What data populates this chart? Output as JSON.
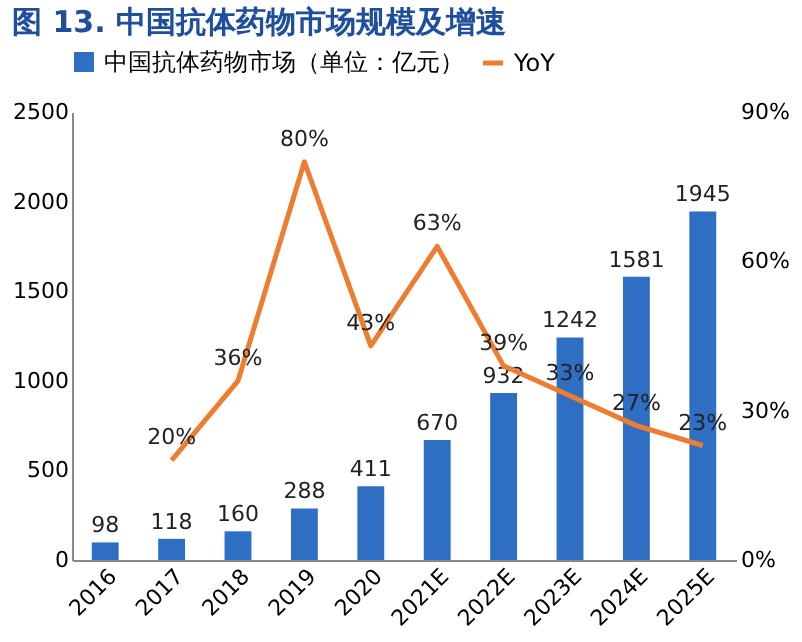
{
  "chart_data": {
    "type": "bar",
    "title": "图 13. 中国抗体药物市场规模及增速",
    "categories": [
      "2016",
      "2017",
      "2018",
      "2019",
      "2020",
      "2021E",
      "2022E",
      "2023E",
      "2024E",
      "2025E"
    ],
    "series": [
      {
        "name": "中国抗体药物市场（单位：亿元）",
        "color": "#2e6fc4",
        "values": [
          98,
          118,
          160,
          288,
          411,
          670,
          932,
          1242,
          1581,
          1945
        ],
        "value_labels": [
          "98",
          "118",
          "160",
          "288",
          "411",
          "670",
          "932",
          "1242",
          "1581",
          "1945"
        ]
      },
      {
        "name": "YoY",
        "type": "line",
        "axis": "y2",
        "color": "#ed7d31",
        "values": [
          null,
          20,
          36,
          80,
          43,
          63,
          39,
          33,
          27,
          23
        ],
        "value_labels": [
          null,
          "20%",
          "36%",
          "80%",
          "43%",
          "63%",
          "39%",
          "33%",
          "27%",
          "23%"
        ]
      }
    ],
    "ylim": [
      0,
      2500
    ],
    "yticks": [
      0,
      500,
      1000,
      1500,
      2000,
      2500
    ],
    "y2lim": [
      0,
      90
    ],
    "y2ticks": [
      {
        "value": 0,
        "label": "0%"
      },
      {
        "value": 30,
        "label": "30%"
      },
      {
        "value": 60,
        "label": "60%"
      },
      {
        "value": 90,
        "label": "90%"
      }
    ],
    "legend": "top"
  }
}
